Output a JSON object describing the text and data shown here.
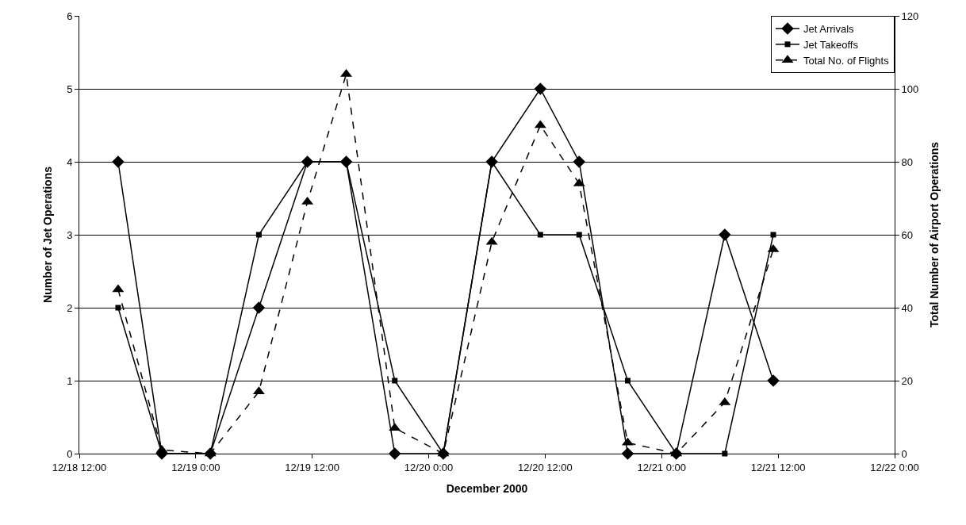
{
  "chart_data": {
    "type": "line",
    "xlabel": "December 2000",
    "ylabel": "Number of Jet Operations",
    "y2label": "Total Number of Airport Operations",
    "x": [
      "2000-12-18T16:00",
      "2000-12-18T20:30",
      "2000-12-19T01:30",
      "2000-12-19T06:30",
      "2000-12-19T11:30",
      "2000-12-19T15:30",
      "2000-12-19T20:30",
      "2000-12-20T01:30",
      "2000-12-20T06:30",
      "2000-12-20T11:30",
      "2000-12-20T15:30",
      "2000-12-20T20:30",
      "2000-12-21T01:30",
      "2000-12-21T06:30",
      "2000-12-21T11:30"
    ],
    "series": [
      {
        "name": "Jet Arrivals",
        "color": "#000000",
        "marker": "diamond",
        "line_style": "solid",
        "values": [
          4,
          0,
          0,
          2,
          4,
          4,
          0,
          0,
          4,
          5,
          4,
          0,
          0,
          3,
          1
        ]
      },
      {
        "name": "Jet Takeoffs",
        "color": "#000000",
        "marker": "square",
        "line_style": "solid",
        "values": [
          2,
          0,
          0,
          3,
          4,
          4,
          1,
          0,
          4,
          3,
          3,
          1,
          0,
          0,
          3
        ]
      },
      {
        "name": "Total No. of Flights",
        "color": "#000000",
        "marker": "triangle",
        "line_style": "dashed",
        "axis": "y2",
        "values": [
          45,
          1,
          0,
          17,
          69,
          104,
          7,
          0,
          58,
          90,
          74,
          3,
          0,
          14,
          56
        ]
      }
    ],
    "xlim": [
      "2000-12-18T12:00",
      "2000-12-22T00:00"
    ],
    "xticks": [
      {
        "value": "2000-12-18T12:00",
        "label": "12/18 12:00"
      },
      {
        "value": "2000-12-19T00:00",
        "label": "12/19 0:00"
      },
      {
        "value": "2000-12-19T12:00",
        "label": "12/19 12:00"
      },
      {
        "value": "2000-12-20T00:00",
        "label": "12/20 0:00"
      },
      {
        "value": "2000-12-20T12:00",
        "label": "12/20 12:00"
      },
      {
        "value": "2000-12-21T00:00",
        "label": "12/21 0:00"
      },
      {
        "value": "2000-12-21T12:00",
        "label": "12/21 12:00"
      },
      {
        "value": "2000-12-22T00:00",
        "label": "12/22 0:00"
      }
    ],
    "ylim": [
      0,
      6
    ],
    "yticks": [
      0,
      1,
      2,
      3,
      4,
      5,
      6
    ],
    "y2lim": [
      0,
      120
    ],
    "y2ticks": [
      0,
      20,
      40,
      60,
      80,
      100,
      120
    ],
    "grid": "y",
    "legend": "top right"
  }
}
